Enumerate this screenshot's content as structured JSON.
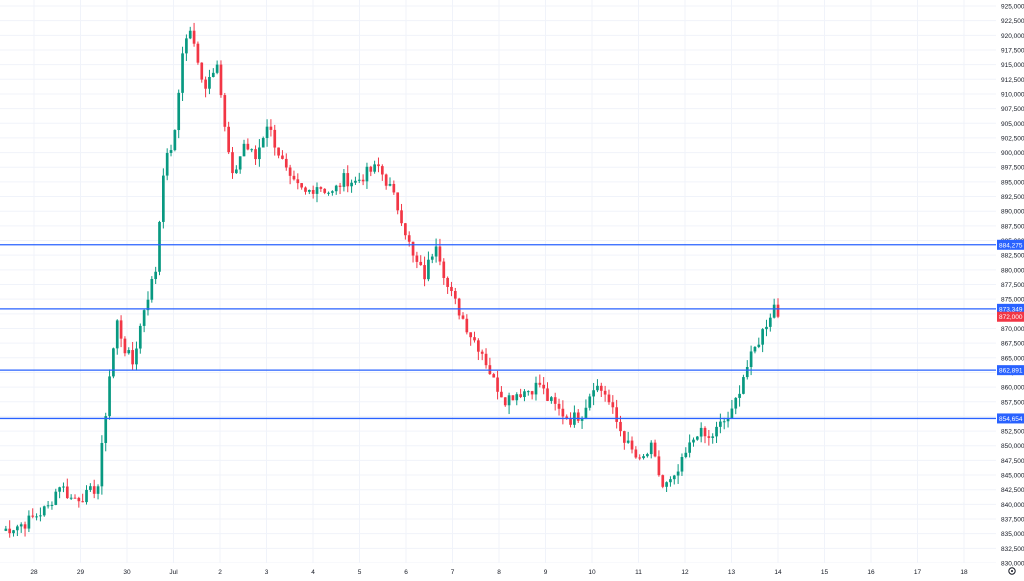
{
  "chart_data": {
    "type": "candlestick",
    "ylim": [
      830000,
      925000
    ],
    "yticks": [
      "925,000",
      "922,500",
      "920,000",
      "917,500",
      "915,000",
      "912,500",
      "910,000",
      "907,500",
      "905,000",
      "902,500",
      "900,000",
      "897,500",
      "895,000",
      "892,500",
      "890,000",
      "887,500",
      "885,000",
      "882,500",
      "880,000",
      "877,500",
      "875,000",
      "872,500",
      "870,000",
      "867,500",
      "865,000",
      "862,500",
      "860,000",
      "857,500",
      "855,000",
      "852,500",
      "850,000",
      "847,500",
      "845,000",
      "842,500",
      "840,000",
      "837,500",
      "835,000",
      "832,500",
      "830,000"
    ],
    "xlabels": [
      "28",
      "29",
      "30",
      "Jul",
      "2",
      "3",
      "4",
      "5",
      "6",
      "7",
      "8",
      "9",
      "10",
      "11",
      "12",
      "13",
      "14",
      "15",
      "16",
      "17",
      "18"
    ],
    "horizontal_lines": [
      {
        "value": 884275,
        "label": "884,275",
        "color": "#2962ff"
      },
      {
        "value": 873349,
        "label": "873,349",
        "color": "#2962ff"
      },
      {
        "value": 862891,
        "label": "862,891",
        "color": "#2962ff"
      },
      {
        "value": 854654,
        "label": "854,654",
        "color": "#2962ff"
      }
    ],
    "last_price": {
      "value": 872000,
      "label": "872,000",
      "color": "#f23645"
    },
    "up_color": "#089981",
    "down_color": "#f23645",
    "grid": true,
    "ohlc_anchors": [
      [
        0,
        835500
      ],
      [
        6,
        836800
      ],
      [
        12,
        839500
      ],
      [
        15,
        843500
      ],
      [
        18,
        841000
      ],
      [
        22,
        841500
      ],
      [
        25,
        843200
      ],
      [
        28,
        862000
      ],
      [
        30,
        871000
      ],
      [
        32,
        866500
      ],
      [
        34,
        864000
      ],
      [
        37,
        873500
      ],
      [
        40,
        880000
      ],
      [
        42,
        897000
      ],
      [
        45,
        903000
      ],
      [
        47,
        917500
      ],
      [
        49,
        921000
      ],
      [
        51,
        915000
      ],
      [
        53,
        911500
      ],
      [
        56,
        916000
      ],
      [
        58,
        904000
      ],
      [
        60,
        895500
      ],
      [
        63,
        901500
      ],
      [
        66,
        899000
      ],
      [
        69,
        905000
      ],
      [
        72,
        900000
      ],
      [
        75,
        895000
      ],
      [
        79,
        893000
      ],
      [
        82,
        894500
      ],
      [
        86,
        893000
      ],
      [
        89,
        895500
      ],
      [
        92,
        895000
      ],
      [
        95,
        896500
      ],
      [
        98,
        897500
      ],
      [
        101,
        894000
      ],
      [
        104,
        889000
      ],
      [
        107,
        882000
      ],
      [
        110,
        879000
      ],
      [
        113,
        885000
      ],
      [
        116,
        877000
      ],
      [
        119,
        873000
      ],
      [
        122,
        869000
      ],
      [
        125,
        866000
      ],
      [
        128,
        861000
      ],
      [
        131,
        858000
      ],
      [
        134,
        859000
      ],
      [
        137,
        859500
      ],
      [
        140,
        860500
      ],
      [
        142,
        858000
      ],
      [
        145,
        856000
      ],
      [
        148,
        854500
      ],
      [
        151,
        855500
      ],
      [
        154,
        860500
      ],
      [
        157,
        859000
      ],
      [
        160,
        854000
      ],
      [
        163,
        850000
      ],
      [
        166,
        847000
      ],
      [
        169,
        849500
      ],
      [
        172,
        843000
      ],
      [
        175,
        844000
      ],
      [
        178,
        848500
      ],
      [
        181,
        852500
      ],
      [
        184,
        851000
      ],
      [
        187,
        853500
      ],
      [
        190,
        855500
      ],
      [
        193,
        862000
      ],
      [
        196,
        866500
      ],
      [
        199,
        871000
      ],
      [
        201,
        874000
      ],
      [
        202,
        872000
      ]
    ]
  },
  "ui": {
    "settings_icon": "gear-icon"
  }
}
